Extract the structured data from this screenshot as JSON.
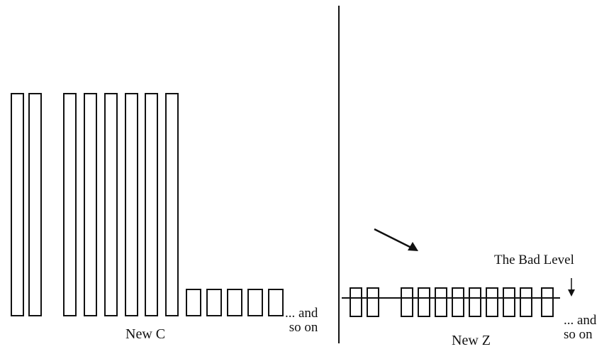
{
  "left_panel": {
    "label": "New C",
    "continuation": [
      "... and",
      "so on"
    ],
    "tall_bar_count": 8,
    "short_bar_count": 5
  },
  "right_panel": {
    "label": "New Z",
    "continuation": [
      "... and",
      "so on"
    ],
    "bar_count": 11,
    "level_label": "The Bad Level"
  },
  "colors": {
    "stroke": "#111111",
    "background": "#ffffff"
  }
}
